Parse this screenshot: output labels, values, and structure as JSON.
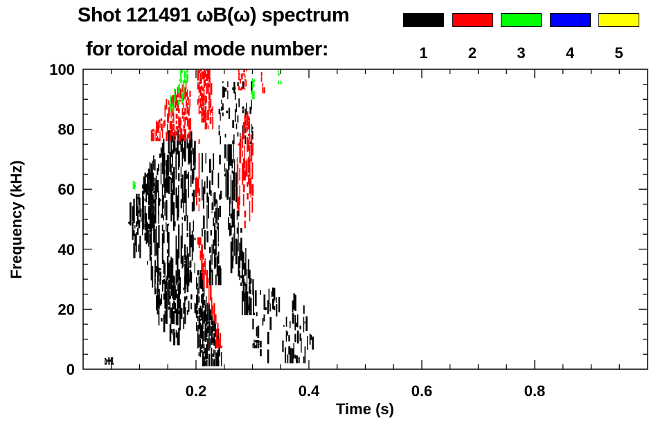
{
  "chart_data": {
    "type": "heatmap",
    "title": "Shot 121491 ωB(ω) spectrum",
    "subtitle": "for toroidal mode number:",
    "xlabel": "Time (s)",
    "ylabel": "Frequency (kHz)",
    "xlim": [
      0,
      1.0
    ],
    "ylim": [
      0,
      100
    ],
    "xticks": [
      0.2,
      0.4,
      0.6,
      0.8
    ],
    "xtick_labels": [
      "0.2",
      "0.4",
      "0.6",
      "0.8"
    ],
    "yticks": [
      0,
      20,
      40,
      60,
      80,
      100
    ],
    "ytick_labels": [
      "0",
      "20",
      "40",
      "60",
      "80",
      "100"
    ],
    "x_minor_step": 0.05,
    "y_minor_step": 5,
    "legend": [
      {
        "mode": "1",
        "color": "#000000"
      },
      {
        "mode": "2",
        "color": "#ff0000"
      },
      {
        "mode": "3",
        "color": "#00ff00"
      },
      {
        "mode": "4",
        "color": "#0000ff"
      },
      {
        "mode": "5",
        "color": "#ffff00"
      }
    ],
    "regions": [
      {
        "mode": 1,
        "density": 0.8,
        "poly": [
          [
            0.08,
            46
          ],
          [
            0.09,
            37
          ],
          [
            0.11,
            44
          ],
          [
            0.14,
            55
          ],
          [
            0.17,
            70
          ],
          [
            0.2,
            72
          ],
          [
            0.2,
            78
          ],
          [
            0.17,
            80
          ],
          [
            0.13,
            72
          ],
          [
            0.1,
            62
          ],
          [
            0.08,
            52
          ]
        ]
      },
      {
        "mode": 1,
        "density": 0.55,
        "poly": [
          [
            0.1,
            56
          ],
          [
            0.13,
            70
          ],
          [
            0.2,
            76
          ],
          [
            0.2,
            40
          ],
          [
            0.17,
            15
          ],
          [
            0.13,
            20
          ],
          [
            0.11,
            38
          ]
        ]
      },
      {
        "mode": 1,
        "density": 0.5,
        "poly": [
          [
            0.12,
            35
          ],
          [
            0.2,
            38
          ],
          [
            0.2,
            20
          ],
          [
            0.16,
            8
          ],
          [
            0.13,
            18
          ]
        ]
      },
      {
        "mode": 1,
        "density": 0.9,
        "poly": [
          [
            0.2,
            33
          ],
          [
            0.21,
            30
          ],
          [
            0.245,
            6
          ],
          [
            0.245,
            1
          ],
          [
            0.205,
            2
          ],
          [
            0.2,
            12
          ]
        ]
      },
      {
        "mode": 1,
        "density": 0.45,
        "poly": [
          [
            0.21,
            72
          ],
          [
            0.245,
            70
          ],
          [
            0.245,
            30
          ],
          [
            0.225,
            28
          ],
          [
            0.21,
            40
          ]
        ]
      },
      {
        "mode": 1,
        "density": 0.8,
        "poly": [
          [
            0.25,
            75
          ],
          [
            0.265,
            74
          ],
          [
            0.28,
            45
          ],
          [
            0.3,
            30
          ],
          [
            0.305,
            18
          ],
          [
            0.28,
            22
          ],
          [
            0.262,
            35
          ],
          [
            0.25,
            60
          ]
        ]
      },
      {
        "mode": 1,
        "density": 0.25,
        "poly": [
          [
            0.28,
            30
          ],
          [
            0.4,
            22
          ],
          [
            0.41,
            2
          ],
          [
            0.3,
            5
          ]
        ]
      },
      {
        "mode": 1,
        "density": 0.9,
        "poly": [
          [
            0.3,
            10
          ],
          [
            0.31,
            10
          ],
          [
            0.31,
            7
          ],
          [
            0.3,
            7
          ]
        ]
      },
      {
        "mode": 1,
        "density": 0.8,
        "poly": [
          [
            0.038,
            4
          ],
          [
            0.052,
            4
          ],
          [
            0.052,
            1.5
          ],
          [
            0.038,
            1.5
          ]
        ]
      },
      {
        "mode": 1,
        "density": 0.25,
        "poly": [
          [
            0.24,
            96
          ],
          [
            0.3,
            96
          ],
          [
            0.3,
            75
          ],
          [
            0.24,
            75
          ]
        ]
      },
      {
        "mode": 2,
        "density": 0.75,
        "poly": [
          [
            0.12,
            80
          ],
          [
            0.15,
            90
          ],
          [
            0.18,
            96
          ],
          [
            0.19,
            92
          ],
          [
            0.19,
            77
          ],
          [
            0.15,
            77
          ],
          [
            0.12,
            76
          ]
        ]
      },
      {
        "mode": 2,
        "density": 0.8,
        "poly": [
          [
            0.2,
            100
          ],
          [
            0.225,
            100
          ],
          [
            0.23,
            82
          ],
          [
            0.22,
            80
          ],
          [
            0.205,
            84
          ]
        ]
      },
      {
        "mode": 2,
        "density": 0.7,
        "poly": [
          [
            0.27,
            72
          ],
          [
            0.29,
            86
          ],
          [
            0.3,
            82
          ],
          [
            0.3,
            52
          ],
          [
            0.285,
            47
          ],
          [
            0.272,
            55
          ]
        ]
      },
      {
        "mode": 2,
        "density": 0.5,
        "poly": [
          [
            0.275,
            100
          ],
          [
            0.29,
            100
          ],
          [
            0.29,
            93
          ],
          [
            0.275,
            93
          ]
        ]
      },
      {
        "mode": 2,
        "density": 0.3,
        "poly": [
          [
            0.2,
            95
          ],
          [
            0.205,
            95
          ],
          [
            0.205,
            30
          ],
          [
            0.2,
            30
          ]
        ]
      },
      {
        "mode": 2,
        "density": 0.6,
        "poly": [
          [
            0.315,
            100
          ],
          [
            0.32,
            100
          ],
          [
            0.32,
            92
          ],
          [
            0.315,
            92
          ]
        ]
      },
      {
        "mode": 2,
        "density": 0.9,
        "poly": [
          [
            0.198,
            44
          ],
          [
            0.206,
            44
          ],
          [
            0.245,
            7
          ],
          [
            0.238,
            7
          ]
        ]
      },
      {
        "mode": 3,
        "density": 0.6,
        "poly": [
          [
            0.15,
            88
          ],
          [
            0.17,
            100
          ],
          [
            0.185,
            100
          ],
          [
            0.18,
            92
          ],
          [
            0.16,
            86
          ]
        ]
      },
      {
        "mode": 3,
        "density": 0.7,
        "poly": [
          [
            0.297,
            97
          ],
          [
            0.303,
            97
          ],
          [
            0.303,
            90
          ],
          [
            0.297,
            90
          ]
        ]
      },
      {
        "mode": 3,
        "density": 0.9,
        "poly": [
          [
            0.088,
            63
          ],
          [
            0.092,
            63
          ],
          [
            0.092,
            60
          ],
          [
            0.088,
            60
          ]
        ]
      },
      {
        "mode": 3,
        "density": 0.5,
        "poly": [
          [
            0.345,
            100
          ],
          [
            0.35,
            100
          ],
          [
            0.35,
            95
          ],
          [
            0.345,
            95
          ]
        ]
      }
    ]
  }
}
